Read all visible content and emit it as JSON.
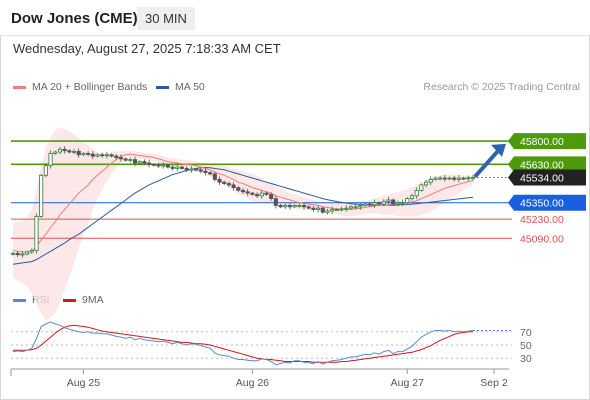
{
  "header": {
    "title": "Dow Jones (CME)",
    "timeframe": "30 MIN",
    "datetime": "Wednesday, August 27, 2025 7:18:33 AM CET"
  },
  "legend": {
    "ma20": "MA 20 + Bollinger Bands",
    "ma50": "MA 50",
    "credit": "Research © 2025 Trading Central"
  },
  "rsi_legend": {
    "rsi": "RSI",
    "ma9": "9MA"
  },
  "colors": {
    "ma20": "#f07c7c",
    "ma50": "#2c5aa0",
    "band_fill": "#fbe0e0",
    "resistance": "#4f9a0a",
    "pivot": "#1a5fe0",
    "support": "#e05050",
    "last_price": "#222222",
    "rsi": "#5b87d9",
    "rsi_ma": "#d31818",
    "up_candle": "#2e7d32",
    "down_candle": "#555555",
    "arrow": "#2f63b0"
  },
  "chart_data": [
    {
      "type": "candlestick",
      "title": "Dow Jones (CME)",
      "x_ticks": [
        "Aug 25",
        "Aug 26",
        "Aug 27",
        "Sep 2"
      ],
      "ylim": [
        44800,
        46100
      ],
      "levels": [
        {
          "label": "45800.00",
          "value": 45800,
          "kind": "resistance"
        },
        {
          "label": "45630.00",
          "value": 45630,
          "kind": "resistance"
        },
        {
          "label": "45534.00",
          "value": 45534,
          "kind": "last"
        },
        {
          "label": "45350.00",
          "value": 45350,
          "kind": "pivot"
        },
        {
          "label": "45230.00",
          "value": 45230,
          "kind": "support"
        },
        {
          "label": "45090.00",
          "value": 45090,
          "kind": "support"
        }
      ],
      "close": [
        44980,
        44970,
        44975,
        44990,
        45000,
        45250,
        45550,
        45620,
        45710,
        45720,
        45740,
        45730,
        45720,
        45725,
        45700,
        45710,
        45705,
        45690,
        45700,
        45695,
        45700,
        45690,
        45680,
        45670,
        45660,
        45665,
        45640,
        45650,
        45640,
        45630,
        45625,
        45620,
        45625,
        45610,
        45600,
        45610,
        45600,
        45590,
        45595,
        45590,
        45580,
        45570,
        45560,
        45520,
        45500,
        45490,
        45480,
        45460,
        45440,
        45430,
        45420,
        45410,
        45400,
        45420,
        45410,
        45380,
        45330,
        45320,
        45330,
        45320,
        45330,
        45330,
        45320,
        45310,
        45300,
        45310,
        45280,
        45290,
        45300,
        45300,
        45305,
        45310,
        45320,
        45320,
        45330,
        45340,
        45335,
        45350,
        45340,
        45360,
        45370,
        45340,
        45350,
        45350,
        45380,
        45400,
        45440,
        45480,
        45500,
        45520,
        45530,
        45530,
        45525,
        45530,
        45520,
        45530,
        45525,
        45532,
        45534
      ],
      "ma20": [
        45000,
        44995,
        44990,
        44990,
        44995,
        45030,
        45080,
        45120,
        45170,
        45210,
        45260,
        45300,
        45340,
        45380,
        45420,
        45450,
        45480,
        45520,
        45550,
        45580,
        45610,
        45640,
        45665,
        45690,
        45700,
        45705,
        45700,
        45695,
        45690,
        45685,
        45680,
        45670,
        45660,
        45650,
        45645,
        45640,
        45635,
        45630,
        45625,
        45620,
        45610,
        45600,
        45590,
        45575,
        45560,
        45550,
        45535,
        45520,
        45500,
        45490,
        45475,
        45460,
        45450,
        45440,
        45430,
        45420,
        45400,
        45390,
        45380,
        45370,
        45360,
        45350,
        45345,
        45340,
        45335,
        45330,
        45320,
        45315,
        45310,
        45305,
        45300,
        45300,
        45300,
        45305,
        45310,
        45315,
        45320,
        45325,
        45330,
        45330,
        45335,
        45340,
        45340,
        45345,
        45350,
        45355,
        45365,
        45380,
        45395,
        45410,
        45425,
        45440,
        45455,
        45465,
        45475,
        45485,
        45495,
        45505,
        45510
      ],
      "bb_upper": [
        45200,
        45210,
        45220,
        45240,
        45300,
        45450,
        45620,
        45750,
        45830,
        45880,
        45900,
        45890,
        45870,
        45850,
        45820,
        45790,
        45770,
        45740,
        45720,
        45710,
        45710,
        45720,
        45725,
        45730,
        45730,
        45728,
        45725,
        45720,
        45715,
        45710,
        45705,
        45700,
        45690,
        45680,
        45675,
        45670,
        45665,
        45660,
        45655,
        45650,
        45645,
        45640,
        45635,
        45630,
        45625,
        45620,
        45610,
        45600,
        45590,
        45580,
        45570,
        45560,
        45545,
        45530,
        45510,
        45490,
        45470,
        45455,
        45440,
        45420,
        45410,
        45400,
        45390,
        45380,
        45370,
        45360,
        45355,
        45350,
        45345,
        45345,
        45345,
        45348,
        45350,
        45355,
        45360,
        45365,
        45370,
        45380,
        45390,
        45400,
        45410,
        45420,
        45430,
        45440,
        45450,
        45460,
        45480,
        45500,
        45520,
        45535,
        45545,
        45550,
        45555,
        45555,
        45555,
        45550,
        45550,
        45548,
        45545
      ],
      "bb_lower": [
        44800,
        44780,
        44760,
        44740,
        44690,
        44610,
        44540,
        44490,
        44510,
        44540,
        44620,
        44710,
        44810,
        44910,
        45020,
        45110,
        45190,
        45300,
        45380,
        45450,
        45510,
        45560,
        45605,
        45650,
        45670,
        45682,
        45675,
        45670,
        45665,
        45660,
        45655,
        45640,
        45630,
        45620,
        45615,
        45610,
        45605,
        45600,
        45595,
        45590,
        45575,
        45560,
        45545,
        45520,
        45495,
        45480,
        45460,
        45440,
        45410,
        45400,
        45380,
        45360,
        45355,
        45350,
        45350,
        45350,
        45330,
        45325,
        45320,
        45320,
        45310,
        45300,
        45300,
        45300,
        45300,
        45300,
        45285,
        45280,
        45275,
        45265,
        45255,
        45252,
        45250,
        45255,
        45260,
        45265,
        45270,
        45270,
        45270,
        45260,
        45260,
        45260,
        45250,
        45250,
        45250,
        45250,
        45250,
        45260,
        45270,
        45285,
        45305,
        45330,
        45355,
        45375,
        45395,
        45420,
        45440,
        45462,
        45475
      ],
      "ma50": [
        44900,
        44905,
        44910,
        44915,
        44920,
        44935,
        44955,
        44975,
        44995,
        45015,
        45035,
        45055,
        45080,
        45100,
        45120,
        45145,
        45170,
        45195,
        45220,
        45245,
        45270,
        45295,
        45320,
        45345,
        45370,
        45395,
        45420,
        45440,
        45460,
        45480,
        45495,
        45510,
        45525,
        45540,
        45555,
        45565,
        45575,
        45585,
        45595,
        45600,
        45605,
        45607,
        45605,
        45600,
        45595,
        45590,
        45580,
        45570,
        45560,
        45550,
        45540,
        45530,
        45520,
        45510,
        45500,
        45490,
        45480,
        45470,
        45460,
        45450,
        45440,
        45430,
        45420,
        45410,
        45400,
        45390,
        45380,
        45372,
        45365,
        45358,
        45352,
        45347,
        45343,
        45340,
        45337,
        45335,
        45333,
        45332,
        45331,
        45331,
        45331,
        45332,
        45333,
        45335,
        45337,
        45340,
        45343,
        45347,
        45350,
        45354,
        45358,
        45362,
        45366,
        45370,
        45374,
        45378,
        45382,
        45386,
        45390
      ],
      "rsi_ylim": [
        0,
        100
      ],
      "rsi_ticks": [
        70,
        50,
        30
      ],
      "rsi": [
        40,
        41,
        40,
        42,
        45,
        60,
        78,
        82,
        85,
        82,
        80,
        76,
        74,
        72,
        70,
        69,
        70,
        68,
        68,
        67,
        67,
        65,
        63,
        62,
        60,
        62,
        58,
        60,
        58,
        57,
        56,
        55,
        56,
        54,
        52,
        54,
        52,
        50,
        52,
        51,
        49,
        47,
        45,
        38,
        35,
        34,
        33,
        30,
        28,
        28,
        27,
        26,
        26,
        29,
        28,
        25,
        20,
        22,
        24,
        23,
        26,
        26,
        24,
        23,
        22,
        25,
        21,
        24,
        26,
        27,
        28,
        30,
        32,
        32,
        34,
        36,
        35,
        38,
        36,
        40,
        42,
        37,
        40,
        40,
        44,
        48,
        55,
        62,
        66,
        70,
        72,
        72,
        71,
        72,
        70,
        71,
        70,
        71,
        72
      ],
      "rsi_ma": [
        42,
        42,
        42,
        42,
        43,
        45,
        50,
        56,
        62,
        68,
        73,
        77,
        79,
        80,
        79,
        78,
        77,
        75,
        73,
        71,
        70,
        69,
        68,
        67,
        66,
        65,
        64,
        63,
        62,
        61,
        60,
        59,
        58,
        57,
        56,
        55,
        54,
        54,
        53,
        52,
        52,
        51,
        50,
        48,
        46,
        44,
        42,
        40,
        38,
        36,
        34,
        32,
        30,
        29,
        28,
        28,
        27,
        26,
        25,
        25,
        25,
        25,
        25,
        25,
        24,
        24,
        24,
        24,
        24,
        24,
        25,
        25,
        26,
        27,
        28,
        29,
        30,
        31,
        32,
        33,
        34,
        35,
        36,
        37,
        38,
        39,
        41,
        43,
        46,
        49,
        53,
        57,
        60,
        63,
        66,
        68,
        69,
        70,
        70
      ]
    }
  ]
}
